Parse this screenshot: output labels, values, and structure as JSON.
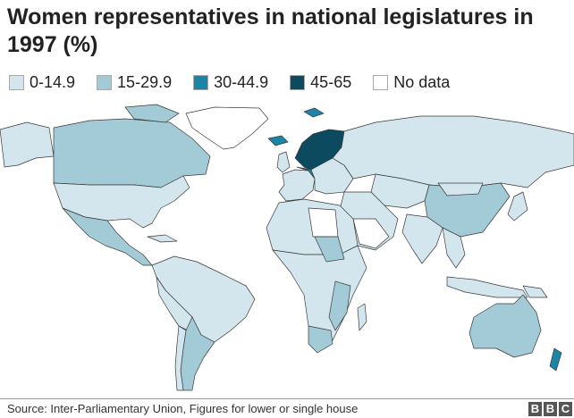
{
  "title": "Women representatives in national legislatures in 1997 (%)",
  "legend": [
    {
      "label": "0-14.9",
      "color": "#d3e6ee"
    },
    {
      "label": "15-29.9",
      "color": "#a2cad7"
    },
    {
      "label": "30-44.9",
      "color": "#1b84a7"
    },
    {
      "label": "45-65",
      "color": "#0c4a5f"
    },
    {
      "label": "No data",
      "color": "#ffffff"
    }
  ],
  "map": {
    "border_color": "#3a3a3a"
  },
  "footer": {
    "source": "Source: Inter-Parliamentary Union, Figures for lower or single house",
    "logo": "BBC"
  }
}
